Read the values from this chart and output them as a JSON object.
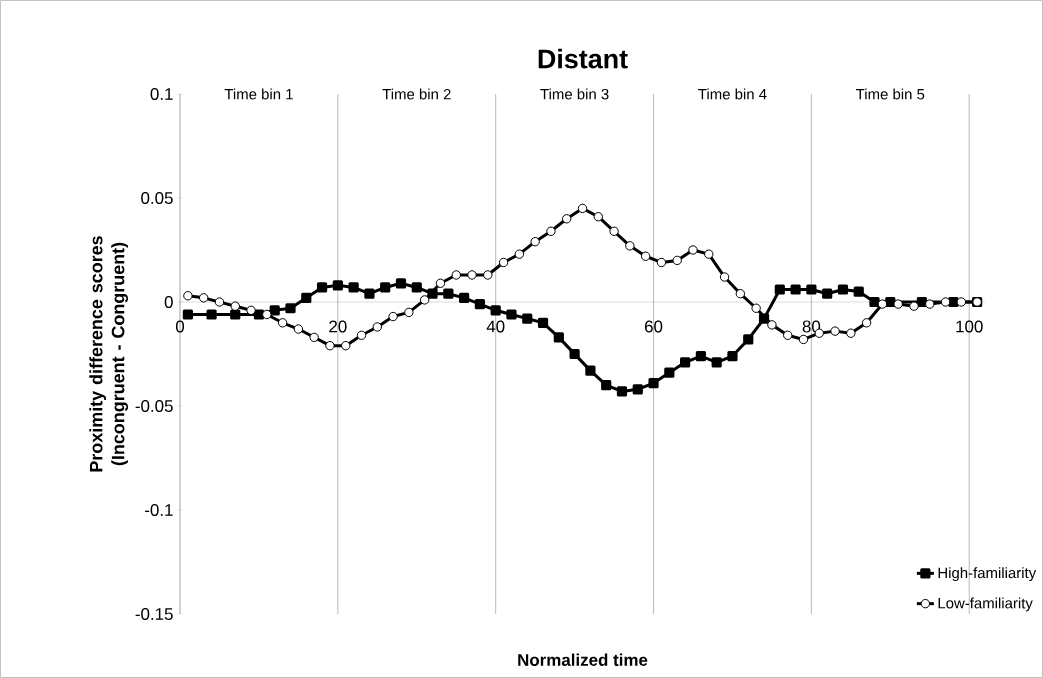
{
  "chart_data": {
    "type": "line",
    "title": "Distant",
    "xlabel": "Normalized time",
    "ylabel": "Proximity difference scores (Incongruent - Congruent)",
    "annotations": [
      "Time bin 1",
      "Time bin 2",
      "Time bin 3",
      "Time bin 4",
      "Time bin 5"
    ],
    "xlim": [
      0,
      102
    ],
    "ylim": [
      -0.15,
      0.1
    ],
    "xticks": [
      0,
      20,
      40,
      60,
      80,
      100
    ],
    "yticks": [
      -0.15,
      -0.1,
      -0.05,
      0,
      0.05,
      0.1
    ],
    "grid": "x",
    "legend": "bottom right",
    "series": [
      {
        "name": "High-familiarity",
        "color": "#000000",
        "marker": "square",
        "x": [
          1,
          4,
          7,
          10,
          12,
          14,
          16,
          18,
          20,
          22,
          24,
          26,
          28,
          30,
          32,
          34,
          36,
          38,
          40,
          42,
          44,
          46,
          48,
          50,
          52,
          54,
          56,
          58,
          60,
          62,
          64,
          66,
          68,
          70,
          72,
          74,
          76,
          78,
          80,
          82,
          84,
          86,
          88,
          90,
          94,
          98,
          101
        ],
        "values": [
          -0.006,
          -0.006,
          -0.006,
          -0.006,
          -0.004,
          -0.003,
          0.002,
          0.007,
          0.008,
          0.007,
          0.004,
          0.007,
          0.009,
          0.007,
          0.004,
          0.004,
          0.002,
          -0.001,
          -0.004,
          -0.006,
          -0.008,
          -0.01,
          -0.017,
          -0.025,
          -0.033,
          -0.04,
          -0.043,
          -0.042,
          -0.039,
          -0.034,
          -0.029,
          -0.026,
          -0.029,
          -0.026,
          -0.018,
          -0.008,
          0.006,
          0.006,
          0.006,
          0.004,
          0.006,
          0.005,
          0.0,
          0.0,
          0.0,
          0.0,
          0.0
        ]
      },
      {
        "name": "Low-familiarity",
        "color": "#000000",
        "marker": "circle",
        "x": [
          1,
          3,
          5,
          7,
          9,
          11,
          13,
          15,
          17,
          19,
          21,
          23,
          25,
          27,
          29,
          31,
          33,
          35,
          37,
          39,
          41,
          43,
          45,
          47,
          49,
          51,
          53,
          55,
          57,
          59,
          61,
          63,
          65,
          67,
          69,
          71,
          73,
          75,
          77,
          79,
          81,
          83,
          85,
          87,
          89,
          91,
          93,
          95,
          97,
          99,
          101
        ],
        "values": [
          0.003,
          0.002,
          0.0,
          -0.002,
          -0.004,
          -0.006,
          -0.01,
          -0.013,
          -0.017,
          -0.021,
          -0.021,
          -0.016,
          -0.012,
          -0.007,
          -0.005,
          0.001,
          0.009,
          0.013,
          0.013,
          0.013,
          0.019,
          0.023,
          0.029,
          0.034,
          0.04,
          0.045,
          0.041,
          0.034,
          0.027,
          0.022,
          0.019,
          0.02,
          0.025,
          0.023,
          0.012,
          0.004,
          -0.003,
          -0.011,
          -0.016,
          -0.018,
          -0.015,
          -0.014,
          -0.015,
          -0.01,
          -0.001,
          -0.001,
          -0.002,
          -0.001,
          0.0,
          0.0,
          0.0
        ]
      }
    ]
  }
}
